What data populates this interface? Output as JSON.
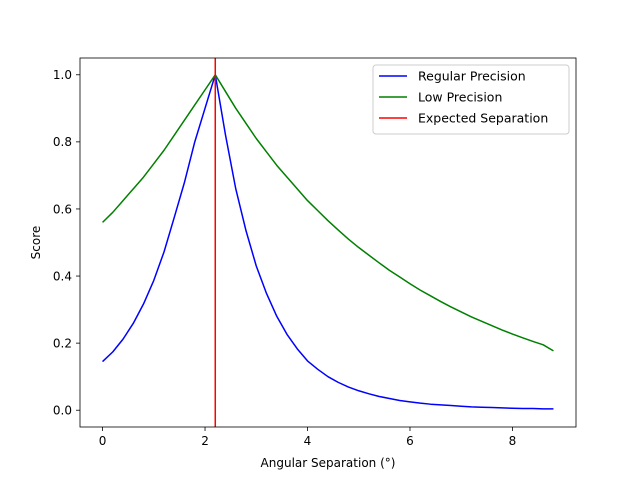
{
  "chart_data": {
    "type": "line",
    "title": "",
    "xlabel": "Angular Separation (°)",
    "ylabel": "Score",
    "xlim": [
      -0.44,
      9.24
    ],
    "ylim": [
      -0.05,
      1.05
    ],
    "x_ticks": [
      0,
      2,
      4,
      6,
      8
    ],
    "x_tick_labels": [
      "0",
      "2",
      "4",
      "6",
      "8"
    ],
    "y_ticks": [
      0.0,
      0.2,
      0.4,
      0.6,
      0.8,
      1.0
    ],
    "y_tick_labels": [
      "0.0",
      "0.2",
      "0.4",
      "0.6",
      "0.8",
      "1.0"
    ],
    "grid": false,
    "legend_position": "top-right",
    "x": [
      0,
      0.2,
      0.4,
      0.6,
      0.8,
      1.0,
      1.2,
      1.4,
      1.6,
      1.8,
      2.0,
      2.2,
      2.4,
      2.6,
      2.8,
      3.0,
      3.2,
      3.4,
      3.6,
      3.8,
      4.0,
      4.2,
      4.4,
      4.6,
      4.8,
      5.0,
      5.2,
      5.4,
      5.6,
      5.8,
      6.0,
      6.2,
      6.4,
      6.6,
      6.8,
      7.0,
      7.2,
      7.4,
      7.6,
      7.8,
      8.0,
      8.2,
      8.4,
      8.6,
      8.8
    ],
    "series": [
      {
        "name": "Regular Precision",
        "color": "#0000ff",
        "values": [
          0.145,
          0.174,
          0.212,
          0.259,
          0.317,
          0.387,
          0.472,
          0.575,
          0.68,
          0.8,
          0.9,
          1.0,
          0.82,
          0.66,
          0.535,
          0.43,
          0.348,
          0.28,
          0.226,
          0.183,
          0.147,
          0.122,
          0.1,
          0.083,
          0.069,
          0.058,
          0.049,
          0.041,
          0.035,
          0.029,
          0.025,
          0.021,
          0.018,
          0.016,
          0.014,
          0.012,
          0.01,
          0.009,
          0.008,
          0.007,
          0.006,
          0.005,
          0.005,
          0.004,
          0.004
        ]
      },
      {
        "name": "Low Precision",
        "color": "#008000",
        "values": [
          0.56,
          0.59,
          0.625,
          0.66,
          0.695,
          0.735,
          0.775,
          0.82,
          0.865,
          0.91,
          0.955,
          1.0,
          0.95,
          0.9,
          0.855,
          0.81,
          0.77,
          0.73,
          0.695,
          0.66,
          0.625,
          0.595,
          0.565,
          0.537,
          0.51,
          0.485,
          0.462,
          0.439,
          0.417,
          0.397,
          0.377,
          0.358,
          0.341,
          0.324,
          0.308,
          0.293,
          0.278,
          0.265,
          0.252,
          0.239,
          0.227,
          0.216,
          0.205,
          0.195,
          0.177
        ]
      }
    ],
    "vlines": [
      {
        "name": "Expected Separation",
        "color": "#ff0000",
        "x": 2.2
      }
    ]
  }
}
